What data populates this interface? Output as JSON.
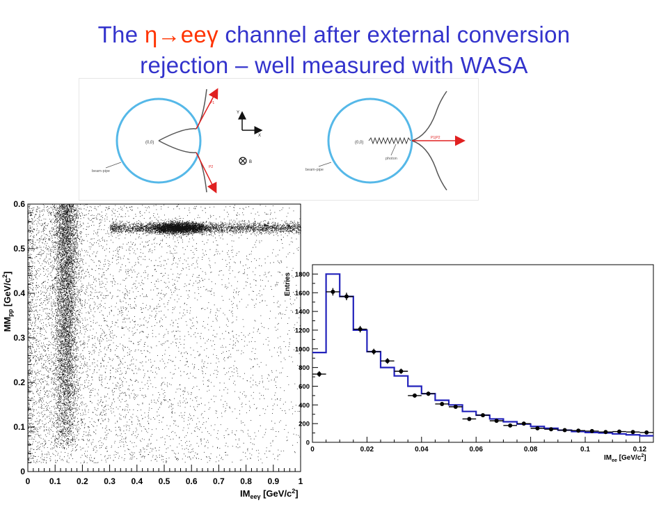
{
  "slide": {
    "title_prefix": "The ",
    "title_channel": "η→eeγ",
    "title_rest": " channel after external conversion",
    "title_line2": "rejection – well measured with WASA"
  },
  "diagram": {
    "labels": [
      "(0,0)",
      "beam-pipe",
      "P1",
      "P2",
      "(0,0)",
      "photon",
      "beam-pipe",
      "P1|P2",
      "Y",
      "X",
      "B"
    ]
  },
  "chart_data": [
    {
      "type": "scatter",
      "title": "",
      "xlabel": "IM",
      "xlabel_sub": "eeγ",
      "xlabel_unit": " [GeV/c",
      "xlabel_unit_sup": "2",
      "xlabel_unit_end": "]",
      "ylabel": "MM",
      "ylabel_sub": "pp",
      "ylabel_unit": " [GeV/c",
      "ylabel_unit_sup": "2",
      "ylabel_unit_end": "]",
      "xlim": [
        0,
        1
      ],
      "ylim": [
        0,
        0.6
      ],
      "xticks": [
        "0",
        "0.1",
        "0.2",
        "0.3",
        "0.4",
        "0.5",
        "0.6",
        "0.7",
        "0.8",
        "0.9",
        "1"
      ],
      "yticks": [
        "0",
        "0.1",
        "0.2",
        "0.3",
        "0.4",
        "0.5",
        "0.6"
      ],
      "features": [
        {
          "kind": "vertical band",
          "x": 0.14,
          "y_range": [
            0.05,
            0.6
          ]
        },
        {
          "kind": "horizontal band",
          "y": 0.547,
          "x_range": [
            0.3,
            1.0
          ]
        },
        {
          "kind": "peak",
          "x": 0.55,
          "y": 0.547
        }
      ]
    },
    {
      "type": "bar",
      "title": "",
      "xlabel": "IM",
      "xlabel_sub": "ee",
      "xlabel_unit": " [GeV/c",
      "xlabel_unit_sup": "2",
      "xlabel_unit_end": "]",
      "ylabel": "Entries",
      "xlim": [
        0,
        0.125
      ],
      "ylim": [
        0,
        1900
      ],
      "xticks": [
        "0",
        "0.02",
        "0.04",
        "0.06",
        "0.08",
        "0.1",
        "0.12"
      ],
      "yticks": [
        "0",
        "200",
        "400",
        "600",
        "800",
        "1000",
        "1200",
        "1400",
        "1600",
        "1800"
      ],
      "bin_width": 0.005,
      "series": [
        {
          "style": "histogram",
          "color": "#2222bb",
          "bin_edges": [
            0,
            0.005,
            0.01,
            0.015,
            0.02,
            0.025,
            0.03,
            0.035,
            0.04,
            0.045,
            0.05,
            0.055,
            0.06,
            0.065,
            0.07,
            0.075,
            0.08,
            0.085,
            0.09,
            0.095,
            0.1,
            0.105,
            0.11,
            0.115,
            0.12,
            0.125
          ],
          "values": [
            960,
            1800,
            1560,
            1200,
            970,
            800,
            710,
            600,
            520,
            450,
            400,
            330,
            290,
            250,
            220,
            195,
            170,
            150,
            130,
            115,
            105,
            100,
            90,
            80,
            70
          ]
        },
        {
          "style": "points with error bars",
          "color": "#000000",
          "x": [
            0.0025,
            0.0075,
            0.0125,
            0.0175,
            0.0225,
            0.0275,
            0.0325,
            0.0375,
            0.0425,
            0.0475,
            0.0525,
            0.0575,
            0.0625,
            0.0675,
            0.0725,
            0.0775,
            0.0825,
            0.0875,
            0.0925,
            0.0975,
            0.1025,
            0.1075,
            0.1125,
            0.1175,
            0.1225
          ],
          "y": [
            730,
            1610,
            1560,
            1210,
            970,
            870,
            760,
            500,
            520,
            410,
            380,
            250,
            290,
            230,
            180,
            200,
            150,
            140,
            130,
            125,
            120,
            110,
            115,
            110,
            105
          ],
          "yerr": [
            30,
            40,
            40,
            35,
            31,
            30,
            28,
            22,
            23,
            20,
            19,
            16,
            17,
            15,
            13,
            14,
            12,
            12,
            11,
            11,
            11,
            10,
            11,
            10,
            10
          ]
        }
      ]
    }
  ]
}
